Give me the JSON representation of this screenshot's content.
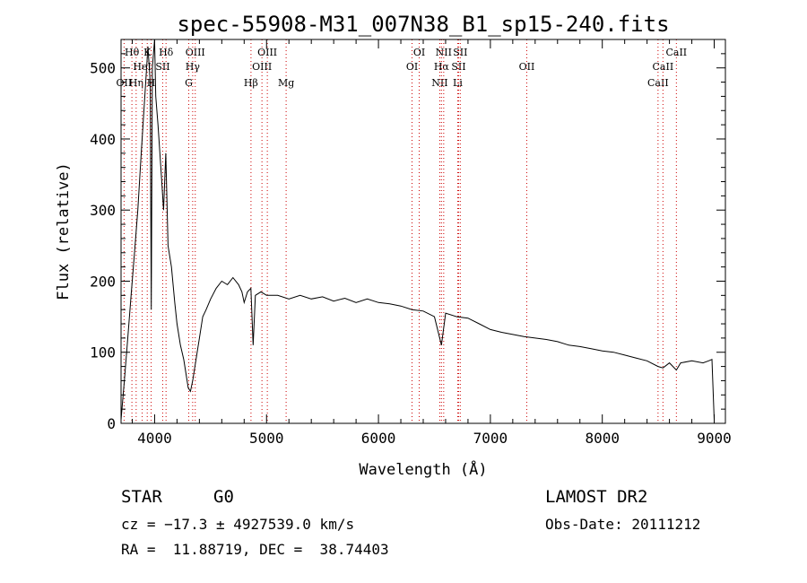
{
  "chart_data": {
    "type": "line",
    "title": "spec-55908-M31_007N38_B1_sp15-240.fits",
    "xlabel": "Wavelength (Å)",
    "ylabel": "Flux (relative)",
    "xlim": [
      3700,
      9100
    ],
    "ylim": [
      0,
      540
    ],
    "xticks": [
      4000,
      5000,
      6000,
      7000,
      8000,
      9000
    ],
    "yticks": [
      0,
      100,
      200,
      300,
      400,
      500
    ],
    "grid": false,
    "line_color": "#000000",
    "marker_color": "#cc0000",
    "series": [
      {
        "x": [
          3700,
          3730,
          3760,
          3790,
          3820,
          3850,
          3880,
          3900,
          3920,
          3940,
          3960,
          3970,
          3980,
          4000,
          4010,
          4030,
          4060,
          4080,
          4100,
          4120,
          4150,
          4180,
          4200,
          4230,
          4260,
          4280,
          4300,
          4320,
          4340,
          4360,
          4380,
          4400,
          4430,
          4460,
          4500,
          4550,
          4600,
          4650,
          4700,
          4750,
          4780,
          4800,
          4830,
          4860,
          4880,
          4900,
          4950,
          5000,
          5100,
          5200,
          5300,
          5400,
          5500,
          5600,
          5700,
          5800,
          5900,
          6000,
          6100,
          6200,
          6300,
          6400,
          6500,
          6563,
          6600,
          6700,
          6800,
          6900,
          7000,
          7100,
          7200,
          7300,
          7400,
          7500,
          7600,
          7700,
          7800,
          7900,
          8000,
          8100,
          8200,
          8300,
          8400,
          8498,
          8542,
          8600,
          8662,
          8700,
          8800,
          8900,
          8950,
          8980,
          9000
        ],
        "y": [
          5,
          60,
          120,
          180,
          240,
          300,
          380,
          430,
          480,
          530,
          480,
          160,
          500,
          540,
          460,
          420,
          350,
          300,
          380,
          250,
          220,
          170,
          140,
          110,
          90,
          70,
          50,
          45,
          60,
          80,
          100,
          120,
          150,
          160,
          175,
          190,
          200,
          195,
          205,
          195,
          185,
          170,
          185,
          190,
          110,
          180,
          185,
          180,
          180,
          175,
          180,
          175,
          178,
          172,
          176,
          170,
          175,
          170,
          168,
          165,
          160,
          158,
          150,
          110,
          155,
          150,
          148,
          140,
          132,
          128,
          125,
          122,
          120,
          118,
          115,
          110,
          108,
          105,
          102,
          100,
          96,
          92,
          88,
          80,
          78,
          85,
          75,
          85,
          88,
          85,
          88,
          90,
          5
        ]
      }
    ],
    "lines": [
      {
        "label": "Hθ",
        "lambda": 3797,
        "row": 1
      },
      {
        "label": "OII",
        "lambda": 3727,
        "row": 3
      },
      {
        "label": "Hη",
        "lambda": 3835,
        "row": 3
      },
      {
        "label": "HeI",
        "lambda": 3889,
        "row": 2
      },
      {
        "label": "K",
        "lambda": 3934,
        "row": 1
      },
      {
        "label": "H",
        "lambda": 3969,
        "row": 3
      },
      {
        "label": "SII",
        "lambda": 4072,
        "row": 2
      },
      {
        "label": "Hδ",
        "lambda": 4102,
        "row": 1
      },
      {
        "label": "OIII",
        "lambda": 4363,
        "row": 1
      },
      {
        "label": "Hγ",
        "lambda": 4340,
        "row": 2
      },
      {
        "label": "G",
        "lambda": 4305,
        "row": 3
      },
      {
        "label": "Hβ",
        "lambda": 4861,
        "row": 3
      },
      {
        "label": "OIII",
        "lambda": 4959,
        "row": 2
      },
      {
        "label": "OIII",
        "lambda": 5007,
        "row": 1
      },
      {
        "label": "Mg",
        "lambda": 5175,
        "row": 3
      },
      {
        "label": "OI",
        "lambda": 6300,
        "row": 2
      },
      {
        "label": "OI",
        "lambda": 6364,
        "row": 1
      },
      {
        "label": "NII",
        "lambda": 6548,
        "row": 3
      },
      {
        "label": "Hα",
        "lambda": 6563,
        "row": 2
      },
      {
        "label": "NII",
        "lambda": 6583,
        "row": 1
      },
      {
        "label": "SII",
        "lambda": 6716,
        "row": 2
      },
      {
        "label": "SII",
        "lambda": 6731,
        "row": 1
      },
      {
        "label": "Li",
        "lambda": 6708,
        "row": 3
      },
      {
        "label": "OII",
        "lambda": 7325,
        "row": 2
      },
      {
        "label": "CaII",
        "lambda": 8498,
        "row": 3
      },
      {
        "label": "CaII",
        "lambda": 8542,
        "row": 2
      },
      {
        "label": "CaII",
        "lambda": 8662,
        "row": 1
      }
    ]
  },
  "info": {
    "class": "STAR",
    "subclass": "G0",
    "survey": "LAMOST DR2",
    "cz": "cz = −17.3 ± 4927539.0 km/s",
    "obs_date": "Obs-Date: 20111212",
    "coords": "RA =  11.88719, DEC =  38.74403"
  }
}
